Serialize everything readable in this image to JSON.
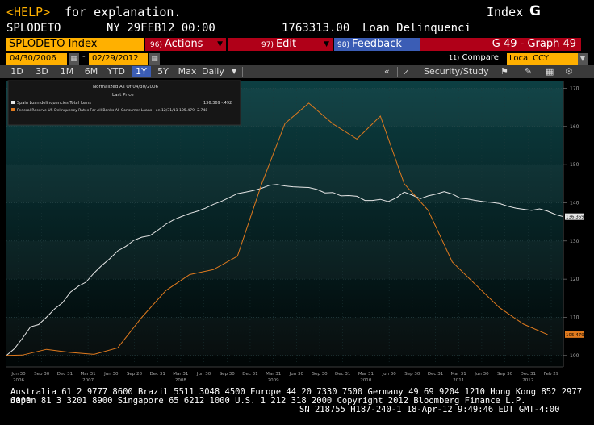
{
  "header": {
    "help": "<HELP>",
    "explanation": "for explanation.",
    "index_label": "Index",
    "index_key": "G"
  },
  "security": {
    "ticker": "SPLODETO",
    "datetime": "NY 29FEB12 00:00",
    "value": "1763313.00",
    "name": "Loan Delinquenci"
  },
  "menubar": {
    "ticker_index": "SPLODETO Index",
    "actions_num": "96)",
    "actions": "Actions",
    "edit_num": "97)",
    "edit": "Edit",
    "feedback_num": "98)",
    "feedback": "Feedback",
    "graph": "G 49 - Graph 49"
  },
  "dates": {
    "start": "04/30/2006",
    "end": "02/29/2012",
    "compare_num": "11)",
    "compare": "Compare",
    "currency": "Local CCY"
  },
  "ranges": [
    "1D",
    "3D",
    "1M",
    "6M",
    "YTD",
    "1Y",
    "5Y",
    "Max"
  ],
  "active_range": "1Y",
  "period": "Daily",
  "toolbar": {
    "security_study": "Security/Study"
  },
  "legend": {
    "line1": "Normalized As Of 04/30/2006",
    "line2": "Last Price",
    "series1_label": "Spain Loan delinquencies Total loans",
    "series1_values": "136.369  -.492",
    "series2_label": "Federal Reserve US Delinquency Rates For All Banks All Consumer Loans - on 12/31/11 105.479  -2.748"
  },
  "colors": {
    "series1": "#e6e6e6",
    "series2": "#e07a1e",
    "accent": "#ffb000",
    "menu_red": "#b00018",
    "menu_blue": "#3b5db5"
  },
  "chart_data": {
    "type": "line",
    "x_tick_labels": [
      {
        "label": "Jun 30",
        "year": "2006"
      },
      {
        "label": "Sep 30",
        "year": ""
      },
      {
        "label": "Dec 31",
        "year": ""
      },
      {
        "label": "Mar 31",
        "year": "2007"
      },
      {
        "label": "Jun 30",
        "year": ""
      },
      {
        "label": "Sep 28",
        "year": ""
      },
      {
        "label": "Dec 31",
        "year": ""
      },
      {
        "label": "Mar 31",
        "year": "2008"
      },
      {
        "label": "Jun 30",
        "year": ""
      },
      {
        "label": "Sep 30",
        "year": ""
      },
      {
        "label": "Dec 31",
        "year": ""
      },
      {
        "label": "Mar 31",
        "year": "2009"
      },
      {
        "label": "Jun 30",
        "year": ""
      },
      {
        "label": "Sep 30",
        "year": ""
      },
      {
        "label": "Dec 31",
        "year": ""
      },
      {
        "label": "Mar 31",
        "year": "2010"
      },
      {
        "label": "Jun 30",
        "year": ""
      },
      {
        "label": "Sep 30",
        "year": ""
      },
      {
        "label": "Dec 31",
        "year": ""
      },
      {
        "label": "Mar 31",
        "year": "2011"
      },
      {
        "label": "Jun 30",
        "year": ""
      },
      {
        "label": "Sep 30",
        "year": ""
      },
      {
        "label": "Dec 31",
        "year": "2012"
      },
      {
        "label": "Feb 29",
        "year": ""
      }
    ],
    "y_ticks": [
      100,
      110,
      120,
      130,
      140,
      150,
      160,
      170
    ],
    "ylim": [
      97,
      172
    ],
    "last_labels": {
      "series1": "136.369",
      "series2": "105.479"
    },
    "series": [
      {
        "name": "Spain Loan delinquencies Total loans",
        "color": "#e6e6e6",
        "x": [
          "2006-04-30",
          "2006-05-31",
          "2006-06-30",
          "2006-07-31",
          "2006-08-31",
          "2006-09-30",
          "2006-10-31",
          "2006-11-30",
          "2006-12-31",
          "2007-01-31",
          "2007-02-28",
          "2007-03-31",
          "2007-04-30",
          "2007-05-31",
          "2007-06-30",
          "2007-07-31",
          "2007-08-31",
          "2007-09-30",
          "2007-10-31",
          "2007-11-30",
          "2007-12-31",
          "2008-01-31",
          "2008-02-29",
          "2008-03-31",
          "2008-04-30",
          "2008-05-31",
          "2008-06-30",
          "2008-07-31",
          "2008-08-31",
          "2008-09-30",
          "2008-10-31",
          "2008-11-30",
          "2008-12-31",
          "2009-01-31",
          "2009-02-28",
          "2009-03-31",
          "2009-04-30",
          "2009-05-31",
          "2009-06-30",
          "2009-07-31",
          "2009-08-31",
          "2009-09-30",
          "2009-10-31",
          "2009-11-30",
          "2009-12-31",
          "2010-01-31",
          "2010-02-28",
          "2010-03-31",
          "2010-04-30",
          "2010-05-31",
          "2010-06-30",
          "2010-07-31",
          "2010-08-31",
          "2010-09-30",
          "2010-10-31",
          "2010-11-30",
          "2010-12-31",
          "2011-01-31",
          "2011-02-28",
          "2011-03-31",
          "2011-04-30",
          "2011-05-31",
          "2011-06-30",
          "2011-07-31",
          "2011-08-31",
          "2011-09-30",
          "2011-10-31",
          "2011-11-30",
          "2011-12-31",
          "2012-01-31",
          "2012-02-29"
        ],
        "values": [
          100,
          101.8,
          104.5,
          107.5,
          108.1,
          110,
          112.2,
          113.8,
          116.6,
          118.2,
          119.2,
          121.6,
          123.6,
          125.4,
          127.4,
          128.6,
          130.2,
          131,
          131.4,
          132.8,
          134.4,
          135.6,
          136.4,
          137.2,
          137.8,
          138.6,
          139.6,
          140.4,
          141.4,
          142.4,
          142.8,
          143.2,
          143.8,
          144.6,
          144.8,
          144.4,
          144.2,
          144.1,
          144.0,
          143.5,
          142.6,
          142.7,
          141.8,
          141.9,
          141.7,
          140.6,
          140.6,
          140.9,
          140.3,
          141.3,
          142.8,
          142.0,
          141.1,
          141.8,
          142.3,
          142.9,
          142.3,
          141.2,
          141.0,
          140.6,
          140.3,
          140.1,
          139.8,
          139.1,
          138.6,
          138.3,
          138.0,
          138.4,
          137.8,
          136.9,
          136.369
        ]
      },
      {
        "name": "Federal Reserve US Delinquency Rates For All Banks All Consumer Loans",
        "color": "#e07a1e",
        "x": [
          "2006-04-30",
          "2006-06-30",
          "2006-09-30",
          "2006-12-31",
          "2007-03-31",
          "2007-06-30",
          "2007-09-30",
          "2007-12-31",
          "2008-03-31",
          "2008-06-30",
          "2008-09-30",
          "2008-12-31",
          "2009-03-31",
          "2009-06-30",
          "2009-09-30",
          "2009-12-31",
          "2010-03-31",
          "2010-06-30",
          "2010-09-30",
          "2010-12-31",
          "2011-03-31",
          "2011-06-30",
          "2011-09-30",
          "2011-12-31"
        ],
        "values": [
          100,
          100.1,
          101.6,
          100.8,
          100.3,
          102.0,
          110.0,
          117.0,
          121.2,
          122.5,
          126.0,
          144.8,
          160.8,
          166.1,
          160.7,
          156.7,
          162.7,
          145.0,
          138.0,
          124.5,
          118.5,
          112.5,
          108.2,
          105.479
        ]
      }
    ]
  },
  "footer": {
    "line1": "Australia 61 2 9777 8600 Brazil 5511 3048 4500 Europe 44 20 7330 7500 Germany 49 69 9204 1210 Hong Kong 852 2977 6000",
    "line2": "Japan 81 3 3201 8900       Singapore 65 6212 1000       U.S. 1 212 318 2000       Copyright 2012 Bloomberg Finance L.P.",
    "line3": "SN 218755 H187-240-1 18-Apr-12  9:49:46 EDT  GMT-4:00"
  }
}
